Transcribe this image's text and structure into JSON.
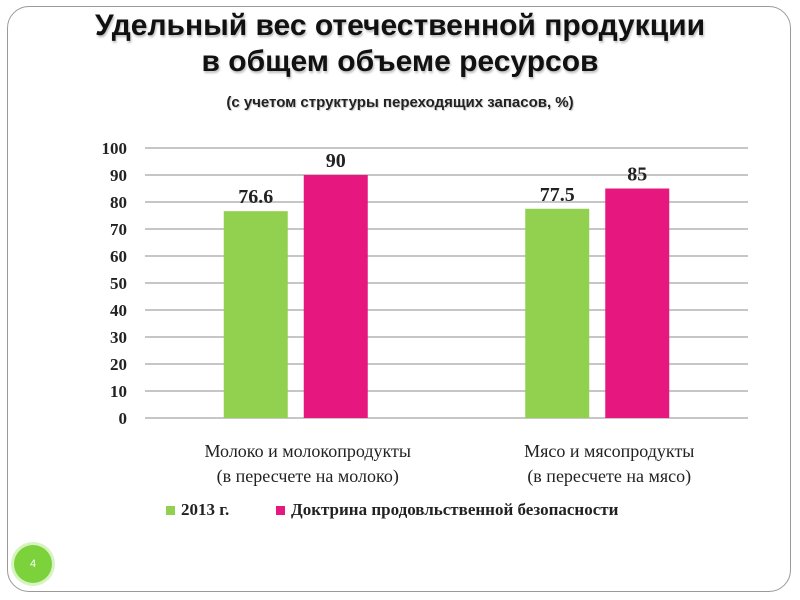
{
  "slide_number": "4",
  "chart_data": {
    "type": "bar",
    "title": [
      "Удельный вес отечественной продукции",
      "в общем объеме ресурсов"
    ],
    "subtitle": "(с учетом структуры переходящих запасов, %)",
    "categories": [
      [
        "Молоко и молокопродукты",
        "(в пересчете на молоко)"
      ],
      [
        "Мясо и мясопродукты",
        "(в пересчете на мясо)"
      ]
    ],
    "series": [
      {
        "name": "2013 г.",
        "values": [
          76.6,
          77.5
        ],
        "labels": [
          "76.6",
          "77.5"
        ],
        "color": "#92d050"
      },
      {
        "name": "Доктрина продовльственной безопасности",
        "values": [
          90,
          85
        ],
        "labels": [
          "90",
          "85"
        ],
        "color": "#e6177f"
      }
    ],
    "ylim": [
      0,
      100
    ],
    "yticks": [
      "0",
      "10",
      "20",
      "30",
      "40",
      "50",
      "60",
      "70",
      "80",
      "90",
      "100"
    ],
    "grid": true,
    "legend_position": "bottom"
  }
}
